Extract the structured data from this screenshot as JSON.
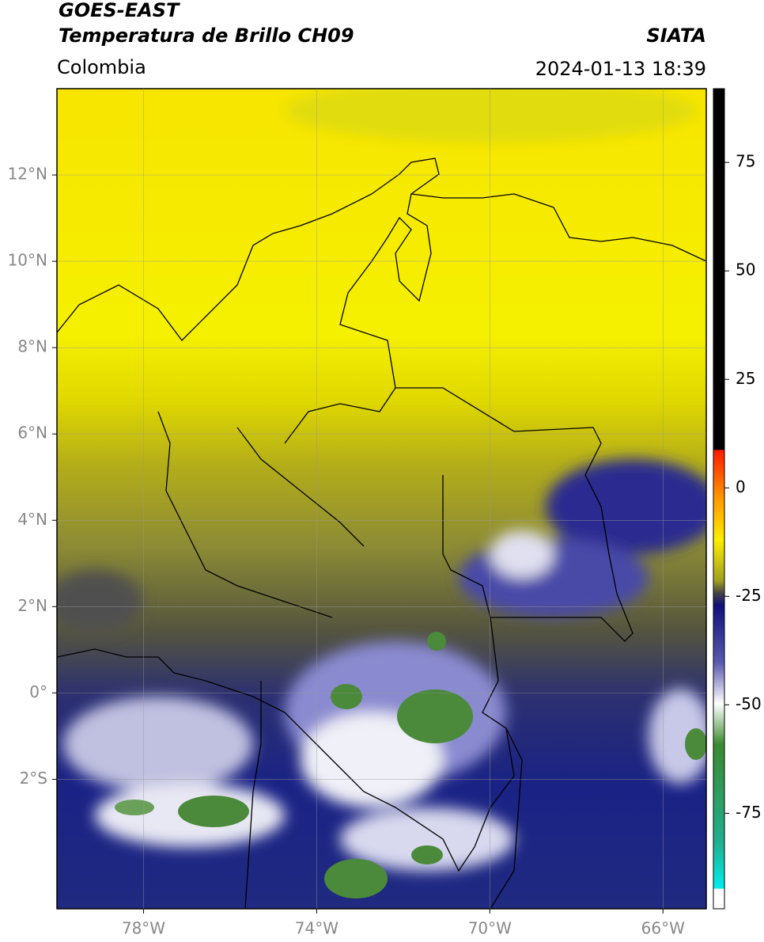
{
  "header": {
    "title": "GOES-EAST",
    "subtitle": "Temperatura de Brillo CH09",
    "region": "Colombia",
    "source": "SIATA",
    "datetime": "2024-01-13 18:39"
  },
  "map": {
    "xlim": [
      -80,
      -65
    ],
    "ylim": [
      -5,
      14
    ],
    "xticks": [
      {
        "value": -78,
        "label": "78°W"
      },
      {
        "value": -74,
        "label": "74°W"
      },
      {
        "value": -70,
        "label": "70°W"
      },
      {
        "value": -66,
        "label": "66°W"
      }
    ],
    "yticks": [
      {
        "value": 12,
        "label": "12°N"
      },
      {
        "value": 10,
        "label": "10°N"
      },
      {
        "value": 8,
        "label": "8°N"
      },
      {
        "value": 6,
        "label": "6°N"
      },
      {
        "value": 4,
        "label": "4°N"
      },
      {
        "value": 2,
        "label": "2°N"
      },
      {
        "value": 0,
        "label": "0°"
      },
      {
        "value": -2,
        "label": "2°S"
      }
    ],
    "grid": true
  },
  "colorbar": {
    "clim": [
      -97,
      92
    ],
    "ticks": [
      75,
      50,
      25,
      0,
      -25,
      -50,
      -75
    ]
  }
}
